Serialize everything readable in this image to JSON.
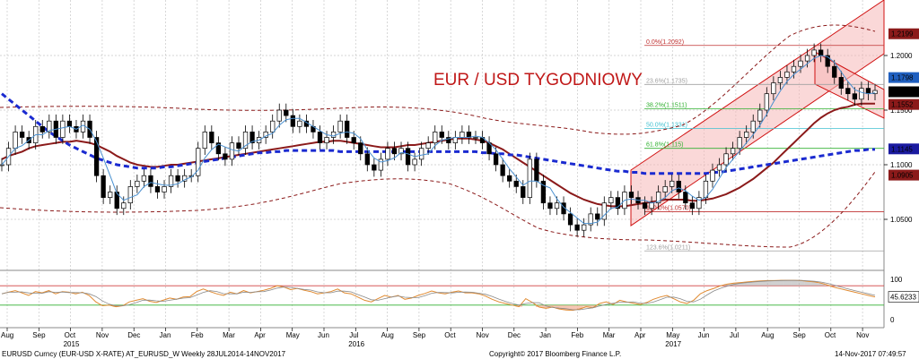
{
  "chart_data": {
    "type": "candlestick",
    "title": "EUR / USD TYGODNIOWY",
    "footer": {
      "instrument": "EURUSD Curncy (EUR-USD X-RATE) AT_EURUSD_W  Weekly 28JUL2014-14NOV2017",
      "copyright": "Copyright© 2017 Bloomberg Finance L.P.",
      "timestamp": "14-Nov-2017 07:49:57"
    },
    "x_axis": {
      "months": [
        "Aug",
        "Sep",
        "Oct",
        "Nov",
        "Dec",
        "Jan",
        "Feb",
        "Mar",
        "Apr",
        "May",
        "Jun",
        "Jul",
        "Aug",
        "Sep",
        "Oct",
        "Nov",
        "Dec",
        "Jan",
        "Feb",
        "Mar",
        "Apr",
        "May",
        "Jun",
        "Jul",
        "Aug",
        "Sep",
        "Oct",
        "Nov"
      ],
      "years": [
        {
          "label": "2015",
          "month_index": 2
        },
        {
          "label": "2016",
          "month_index": 11
        },
        {
          "label": "2017",
          "month_index": 21
        }
      ]
    },
    "y_axis": {
      "ticks": [
        1.05,
        1.1,
        1.15,
        1.2
      ],
      "tick_labels": [
        "1.0500",
        "1.1000",
        "1.1500",
        "1.2000"
      ],
      "range": [
        1.0,
        1.25
      ]
    },
    "price_tags": [
      {
        "label": "1.2199",
        "value": 1.2199,
        "color": "#8b1a1a"
      },
      {
        "label": "1.1798",
        "value": 1.1798,
        "color": "#1f5fbf"
      },
      {
        "label": "1.1668",
        "value": 1.1668,
        "color": "#000000"
      },
      {
        "label": "1.1552",
        "value": 1.1552,
        "color": "#8b1a1a"
      },
      {
        "label": "1.1145",
        "value": 1.1145,
        "color": "#1a1aa0"
      },
      {
        "label": "1.0905",
        "value": 1.0905,
        "color": "#8b1a1a"
      }
    ],
    "fibonacci": [
      {
        "label": "0.0%(1.2092)",
        "value": 1.2092,
        "color": "#c03030"
      },
      {
        "label": "23.6%(1.1735)",
        "value": 1.1735,
        "color": "#a0a0a0"
      },
      {
        "label": "38.2%(1.1511)",
        "value": 1.1511,
        "color": "#30b030"
      },
      {
        "label": "50.0%(1.1331)",
        "value": 1.1331,
        "color": "#40c0d0"
      },
      {
        "label": "61.8%(1.115)",
        "value": 1.115,
        "color": "#30b030"
      },
      {
        "label": "100.0%(1.0570)",
        "value": 1.057,
        "color": "#c03030"
      },
      {
        "label": "123.6%(1.0211)",
        "value": 1.0211,
        "color": "#a0a0a0"
      }
    ],
    "osc_axis": {
      "ticks": [
        100,
        0
      ],
      "tick_labels": [
        "100",
        "0"
      ],
      "current_label": "45.6233",
      "current_value": 45.6233,
      "levels": [
        80,
        20
      ]
    },
    "price_series": [
      1.1,
      1.115,
      1.13,
      1.125,
      1.12,
      1.135,
      1.13,
      1.14,
      1.125,
      1.14,
      1.135,
      1.13,
      1.14,
      1.125,
      1.09,
      1.07,
      1.075,
      1.06,
      1.065,
      1.08,
      1.085,
      1.09,
      1.08,
      1.075,
      1.08,
      1.09,
      1.085,
      1.09,
      1.09,
      1.115,
      1.13,
      1.12,
      1.11,
      1.105,
      1.12,
      1.115,
      1.13,
      1.12,
      1.125,
      1.13,
      1.14,
      1.15,
      1.145,
      1.135,
      1.14,
      1.135,
      1.13,
      1.12,
      1.125,
      1.13,
      1.14,
      1.125,
      1.12,
      1.11,
      1.1,
      1.095,
      1.105,
      1.115,
      1.11,
      1.115,
      1.1,
      1.105,
      1.115,
      1.12,
      1.13,
      1.125,
      1.12,
      1.125,
      1.13,
      1.125,
      1.125,
      1.12,
      1.11,
      1.1,
      1.09,
      1.085,
      1.08,
      1.07,
      1.105,
      1.085,
      1.065,
      1.06,
      1.065,
      1.055,
      1.045,
      1.04,
      1.045,
      1.055,
      1.05,
      1.065,
      1.07,
      1.06,
      1.075,
      1.07,
      1.065,
      1.06,
      1.065,
      1.075,
      1.08,
      1.085,
      1.075,
      1.065,
      1.06,
      1.07,
      1.085,
      1.095,
      1.1,
      1.11,
      1.115,
      1.125,
      1.13,
      1.14,
      1.15,
      1.165,
      1.175,
      1.18,
      1.185,
      1.19,
      1.195,
      1.2,
      1.205,
      1.2,
      1.19,
      1.18,
      1.17,
      1.165,
      1.16,
      1.17,
      1.165,
      1.168
    ],
    "sma_red_series": [
      1.105,
      1.108,
      1.11,
      1.112,
      1.115,
      1.117,
      1.118,
      1.119,
      1.12,
      1.121,
      1.121,
      1.122,
      1.121,
      1.12,
      1.118,
      1.115,
      1.112,
      1.108,
      1.105,
      1.102,
      1.1,
      1.099,
      1.098,
      1.098,
      1.099,
      1.1,
      1.1,
      1.101,
      1.102,
      1.103,
      1.104,
      1.105,
      1.106,
      1.107,
      1.108,
      1.109,
      1.11,
      1.111,
      1.112,
      1.113,
      1.114,
      1.115,
      1.116,
      1.117,
      1.118,
      1.119,
      1.12,
      1.121,
      1.121,
      1.122,
      1.122,
      1.121,
      1.12,
      1.119,
      1.118,
      1.117,
      1.116,
      1.116,
      1.116,
      1.117,
      1.118,
      1.118,
      1.119,
      1.12,
      1.121,
      1.122,
      1.123,
      1.124,
      1.124,
      1.124,
      1.123,
      1.122,
      1.12,
      1.117,
      1.114,
      1.11,
      1.106,
      1.102,
      1.098,
      1.094,
      1.09,
      1.086,
      1.082,
      1.078,
      1.074,
      1.071,
      1.068,
      1.066,
      1.064,
      1.063,
      1.062,
      1.062,
      1.062,
      1.063,
      1.064,
      1.065,
      1.066,
      1.067,
      1.068,
      1.068,
      1.068,
      1.068,
      1.067,
      1.067,
      1.068,
      1.069,
      1.071,
      1.073,
      1.076,
      1.079,
      1.083,
      1.087,
      1.092,
      1.097,
      1.102,
      1.108,
      1.114,
      1.12,
      1.126,
      1.132,
      1.138,
      1.143,
      1.147,
      1.15,
      1.152,
      1.153,
      1.155,
      1.156,
      1.156,
      1.156
    ],
    "sma_blue_series": [
      1.165,
      1.16,
      1.155,
      1.15,
      1.145,
      1.14,
      1.135,
      1.13,
      1.126,
      1.122,
      1.118,
      1.115,
      1.112,
      1.109,
      1.106,
      1.104,
      1.102,
      1.1,
      1.099,
      1.098,
      1.097,
      1.097,
      1.097,
      1.097,
      1.098,
      1.098,
      1.099,
      1.1,
      1.101,
      1.102,
      1.103,
      1.104,
      1.105,
      1.106,
      1.107,
      1.108,
      1.109,
      1.11,
      1.111,
      1.111,
      1.112,
      1.112,
      1.113,
      1.113,
      1.113,
      1.113,
      1.113,
      1.113,
      1.113,
      1.113,
      1.112,
      1.112,
      1.112,
      1.112,
      1.112,
      1.112,
      1.112,
      1.112,
      1.112,
      1.112,
      1.112,
      1.112,
      1.112,
      1.112,
      1.112,
      1.112,
      1.112,
      1.112,
      1.112,
      1.112,
      1.112,
      1.111,
      1.111,
      1.11,
      1.11,
      1.109,
      1.109,
      1.108,
      1.107,
      1.106,
      1.105,
      1.104,
      1.103,
      1.102,
      1.101,
      1.1,
      1.099,
      1.098,
      1.097,
      1.096,
      1.095,
      1.094,
      1.094,
      1.093,
      1.093,
      1.092,
      1.092,
      1.092,
      1.092,
      1.092,
      1.092,
      1.092,
      1.092,
      1.092,
      1.092,
      1.093,
      1.093,
      1.094,
      1.095,
      1.096,
      1.097,
      1.098,
      1.099,
      1.1,
      1.101,
      1.102,
      1.103,
      1.104,
      1.105,
      1.106,
      1.107,
      1.108,
      1.109,
      1.11,
      1.111,
      1.112,
      1.113,
      1.113,
      1.114,
      1.114
    ],
    "osc_series": [
      55,
      60,
      65,
      58,
      50,
      62,
      58,
      65,
      55,
      62,
      60,
      55,
      60,
      50,
      30,
      18,
      20,
      15,
      18,
      30,
      35,
      40,
      32,
      28,
      35,
      42,
      38,
      45,
      46,
      62,
      70,
      62,
      55,
      50,
      60,
      55,
      65,
      58,
      62,
      66,
      72,
      80,
      76,
      68,
      72,
      66,
      62,
      55,
      58,
      62,
      70,
      58,
      55,
      45,
      35,
      30,
      40,
      50,
      45,
      50,
      38,
      42,
      50,
      56,
      64,
      58,
      55,
      60,
      64,
      58,
      58,
      55,
      48,
      38,
      30,
      25,
      20,
      15,
      40,
      28,
      14,
      10,
      14,
      8,
      5,
      4,
      8,
      15,
      12,
      25,
      30,
      22,
      35,
      30,
      26,
      22,
      28,
      38,
      45,
      50,
      40,
      30,
      25,
      35,
      55,
      65,
      72,
      80,
      85,
      88,
      90,
      92,
      94,
      95,
      96,
      96,
      97,
      97,
      97,
      96,
      94,
      92,
      88,
      82,
      75,
      70,
      65,
      60,
      55,
      50,
      45.6
    ]
  }
}
